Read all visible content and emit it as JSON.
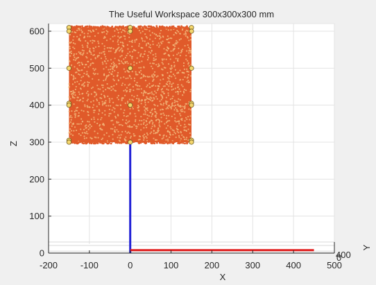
{
  "chart_data": {
    "type": "scatter",
    "title": "The Useful Workspace 300x300x300 mm",
    "xlabel": "X",
    "ylabel": "Z",
    "zlabel": "Y",
    "xlim": [
      -200,
      500
    ],
    "zlim": [
      0,
      620
    ],
    "grid": true,
    "x_ticks": [
      -200,
      -100,
      0,
      100,
      200,
      300,
      400,
      500
    ],
    "z_ticks": [
      0,
      100,
      200,
      300,
      400,
      500,
      600
    ],
    "y_ticks_visible": [
      0,
      400
    ],
    "workspace_cloud": {
      "color": "#e05a2a",
      "point_color": "#f2b77a",
      "x_range": [
        -150,
        150
      ],
      "z_range": [
        300,
        610
      ]
    },
    "corner_markers": {
      "color": "#f5d76e",
      "edge_color": "#6b5a1e",
      "points": [
        {
          "x": -150,
          "z": 610
        },
        {
          "x": -150,
          "z": 600
        },
        {
          "x": -150,
          "z": 500
        },
        {
          "x": -150,
          "z": 405
        },
        {
          "x": -150,
          "z": 400
        },
        {
          "x": -150,
          "z": 305
        },
        {
          "x": -150,
          "z": 300
        },
        {
          "x": 0,
          "z": 610
        },
        {
          "x": 0,
          "z": 600
        },
        {
          "x": 0,
          "z": 500
        },
        {
          "x": 0,
          "z": 400
        },
        {
          "x": 0,
          "z": 300
        },
        {
          "x": 150,
          "z": 610
        },
        {
          "x": 150,
          "z": 600
        },
        {
          "x": 150,
          "z": 500
        },
        {
          "x": 150,
          "z": 405
        },
        {
          "x": 150,
          "z": 400
        },
        {
          "x": 150,
          "z": 305
        },
        {
          "x": 150,
          "z": 300
        }
      ]
    },
    "lines": [
      {
        "name": "z-axis-line",
        "color": "#1f1fd6",
        "points": [
          {
            "x": 0,
            "z": 0
          },
          {
            "x": 0,
            "z": 300
          }
        ]
      },
      {
        "name": "x-axis-line",
        "color": "#e01b1b",
        "points": [
          {
            "x": 0,
            "z": 8
          },
          {
            "x": 450,
            "z": 8
          }
        ]
      }
    ]
  }
}
